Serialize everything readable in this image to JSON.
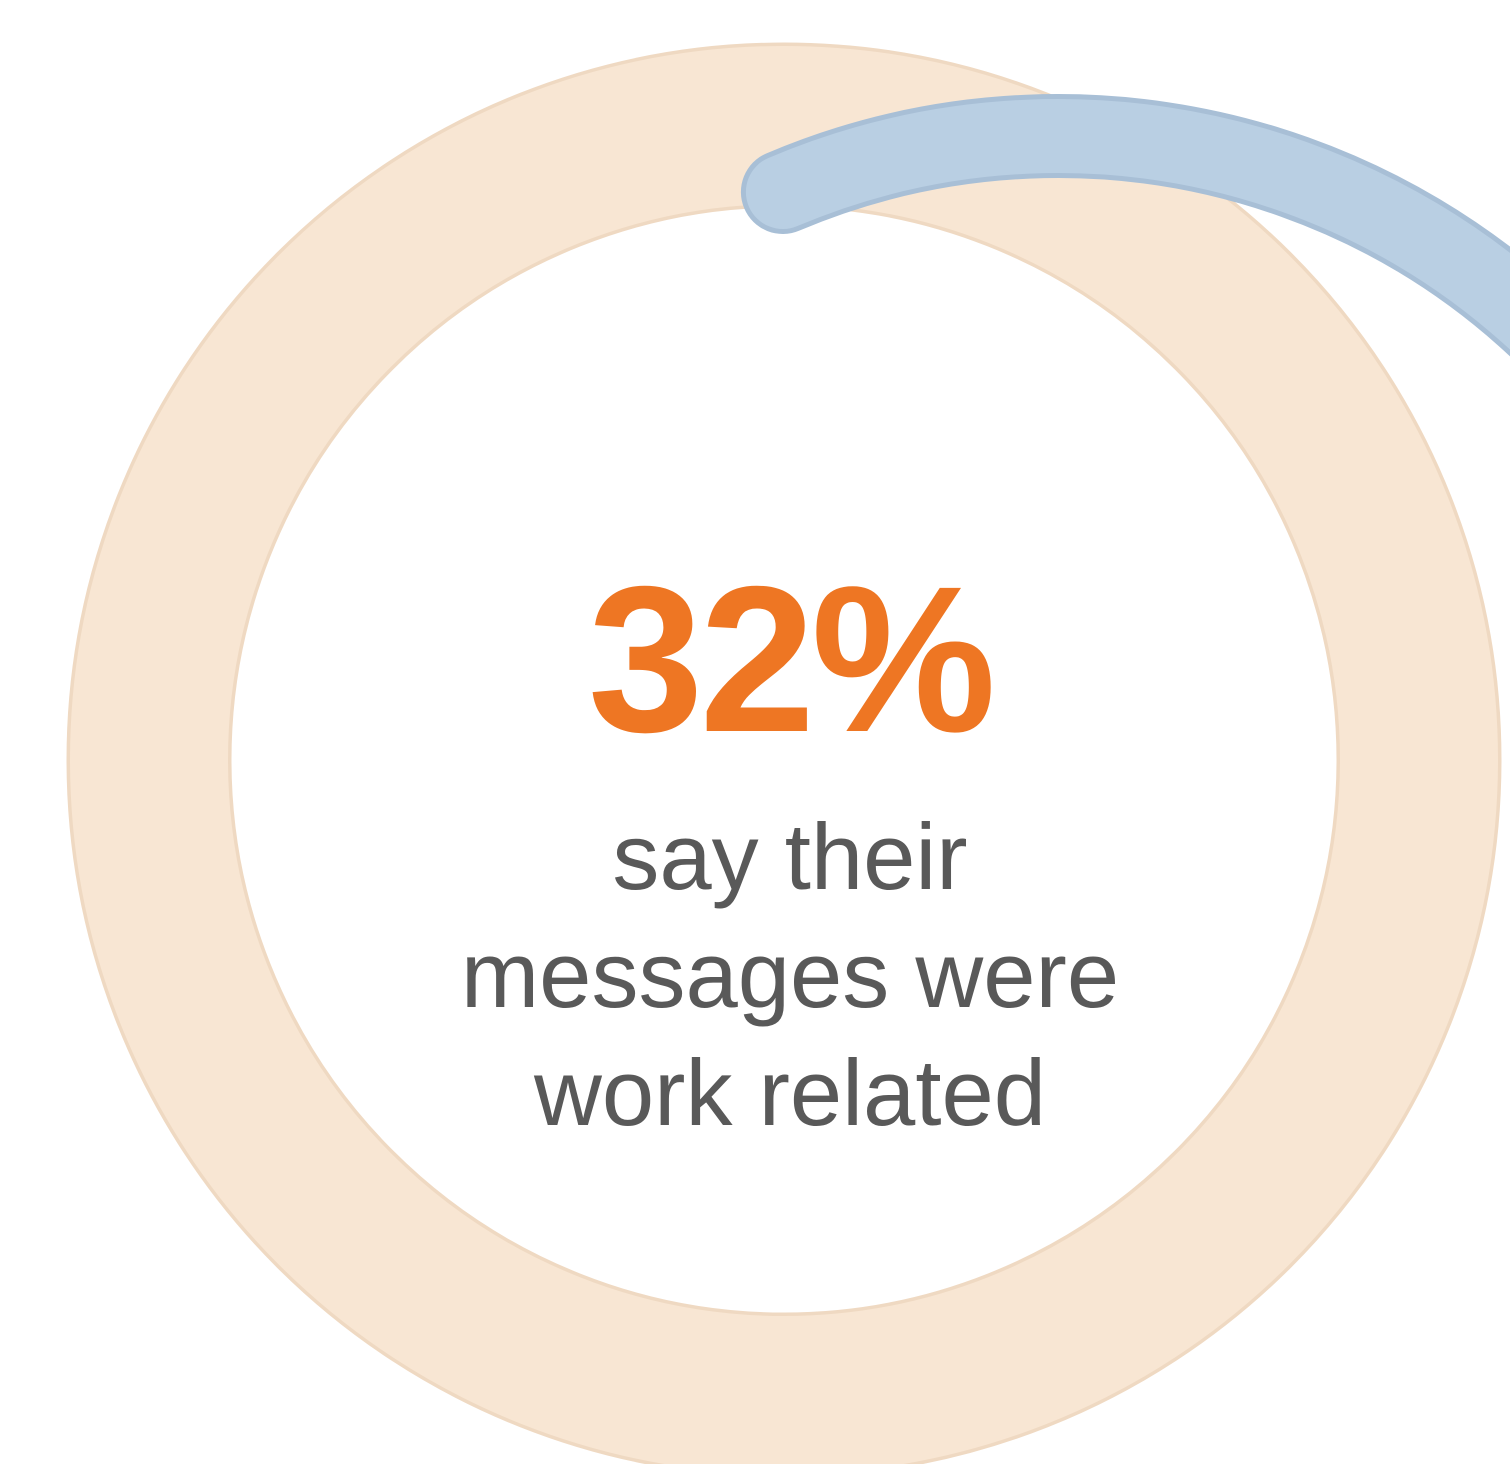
{
  "chart_data": {
    "type": "pie",
    "value": 32,
    "unit": "%",
    "value_label": "32%",
    "caption_lines": [
      "say their",
      "messages were",
      "work related"
    ],
    "slices": [
      {
        "label": "say their messages were work related",
        "value": 32
      }
    ],
    "colors": {
      "track": "#f8e6d3",
      "track_edge": "#efd9c2",
      "progress": "#b9cfe3",
      "progress_edge": "#a8bfd6",
      "value_text": "#ee7623",
      "caption_text": "#595959"
    }
  }
}
